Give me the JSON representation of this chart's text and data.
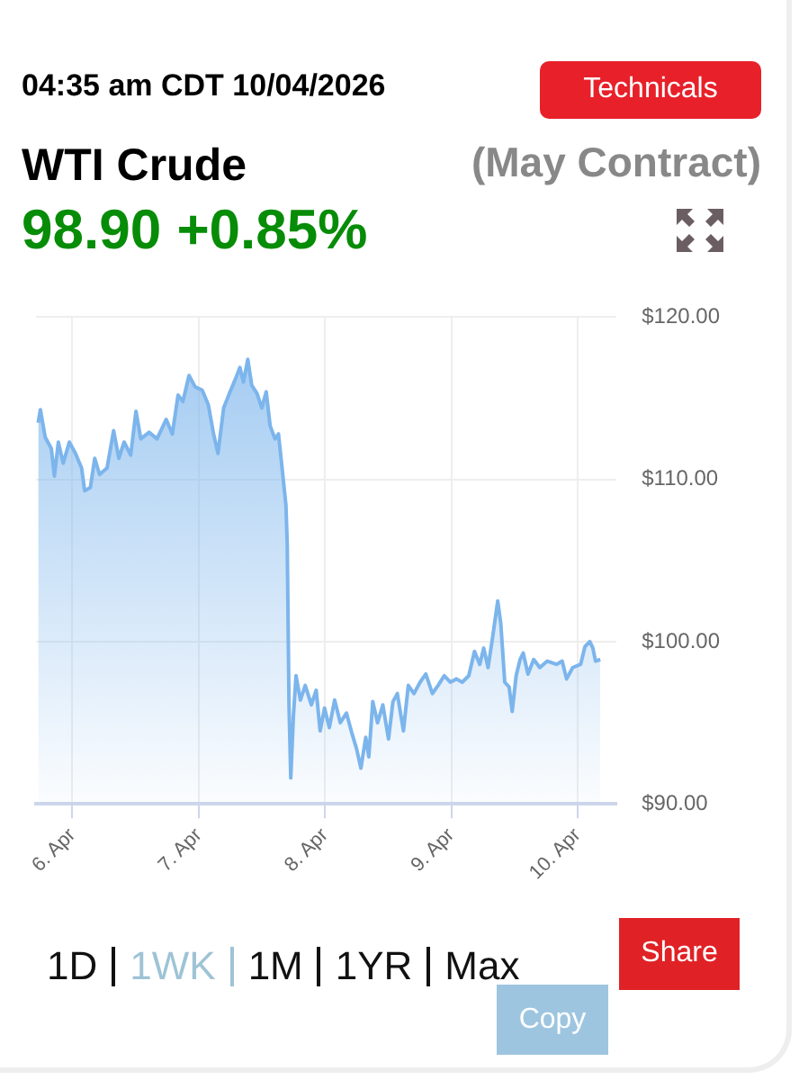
{
  "chart_data": {
    "type": "area",
    "title": "WTI Crude",
    "subtitle": "(May Contract)",
    "annotations": [
      "04:35 am CDT 10/04/2026",
      "98.90 +0.85%",
      "Technicals",
      "1D",
      "1WK",
      "1M",
      "1YR",
      "Max",
      "Share",
      "Copy"
    ],
    "x": [
      "2026-04-05T17:30",
      "2026-04-05T17:55",
      "2026-04-05T18:50",
      "2026-04-05T20:00",
      "2026-04-05T20:35",
      "2026-04-05T21:20",
      "2026-04-05T22:15",
      "2026-04-05T23:25",
      "2026-04-06T00:35",
      "2026-04-06T01:45",
      "2026-04-06T02:20",
      "2026-04-06T03:25",
      "2026-04-06T04:15",
      "2026-04-06T05:10",
      "2026-04-06T06:35",
      "2026-04-06T07:50",
      "2026-04-06T08:50",
      "2026-04-06T09:50",
      "2026-04-06T11:05",
      "2026-04-06T12:05",
      "2026-04-06T13:00",
      "2026-04-06T14:35",
      "2026-04-06T16:05",
      "2026-04-06T17:50",
      "2026-04-06T19:00",
      "2026-04-06T20:05",
      "2026-04-06T21:00",
      "2026-04-06T22:10",
      "2026-04-06T23:20",
      "2026-04-07T00:40",
      "2026-04-07T01:50",
      "2026-04-07T02:50",
      "2026-04-07T03:40",
      "2026-04-07T04:45",
      "2026-04-07T05:50",
      "2026-04-07T07:00",
      "2026-04-07T07:50",
      "2026-04-07T08:30",
      "2026-04-07T09:20",
      "2026-04-07T10:05",
      "2026-04-07T11:05",
      "2026-04-07T12:00",
      "2026-04-07T12:50",
      "2026-04-07T13:35",
      "2026-04-07T14:30",
      "2026-04-07T15:10",
      "2026-04-07T15:55",
      "2026-04-07T16:35",
      "2026-04-07T16:50",
      "2026-04-07T17:10",
      "2026-04-07T17:30",
      "2026-04-07T18:00",
      "2026-04-07T18:30",
      "2026-04-07T19:20",
      "2026-04-07T20:15",
      "2026-04-07T21:25",
      "2026-04-07T22:20",
      "2026-04-07T23:05",
      "2026-04-07T23:55",
      "2026-04-08T00:50",
      "2026-04-08T01:50",
      "2026-04-08T02:55",
      "2026-04-08T04:05",
      "2026-04-08T05:10",
      "2026-04-08T06:00",
      "2026-04-08T06:50",
      "2026-04-08T07:45",
      "2026-04-08T08:20",
      "2026-04-08T09:05",
      "2026-04-08T10:00",
      "2026-04-08T11:00",
      "2026-04-08T12:05",
      "2026-04-08T12:55",
      "2026-04-08T13:45",
      "2026-04-08T14:55",
      "2026-04-08T15:50",
      "2026-04-08T16:55",
      "2026-04-08T18:05",
      "2026-04-08T19:10",
      "2026-04-08T20:25",
      "2026-04-08T21:30",
      "2026-04-08T22:40",
      "2026-04-08T23:50",
      "2026-04-09T01:00",
      "2026-04-09T02:05",
      "2026-04-09T03:20",
      "2026-04-09T04:25",
      "2026-04-09T05:25",
      "2026-04-09T06:10",
      "2026-04-09T07:00",
      "2026-04-09T07:55",
      "2026-04-09T08:50",
      "2026-04-09T09:25",
      "2026-04-09T10:10",
      "2026-04-09T11:00",
      "2026-04-09T11:35",
      "2026-04-09T12:20",
      "2026-04-09T13:05",
      "2026-04-09T13:40",
      "2026-04-09T14:35",
      "2026-04-09T15:40",
      "2026-04-09T16:50",
      "2026-04-09T18:15",
      "2026-04-09T20:00",
      "2026-04-09T21:05",
      "2026-04-09T21:55",
      "2026-04-09T23:05",
      "2026-04-10T00:35",
      "2026-04-10T01:25",
      "2026-04-10T02:20",
      "2026-04-10T02:55",
      "2026-04-10T03:25",
      "2026-04-10T04:20"
    ],
    "series": [
      {
        "color": "#7cb5ec",
        "values": [
          113.5,
          114.3,
          112.6,
          111.9,
          110.2,
          112.3,
          111.0,
          112.3,
          111.6,
          110.7,
          109.3,
          109.5,
          111.3,
          110.3,
          110.7,
          113.0,
          111.3,
          112.3,
          111.5,
          114.2,
          112.5,
          112.9,
          112.5,
          113.7,
          112.8,
          115.2,
          114.8,
          116.4,
          115.7,
          115.5,
          114.6,
          112.8,
          111.6,
          114.4,
          115.3,
          116.2,
          116.9,
          116.0,
          117.4,
          115.8,
          115.3,
          114.4,
          115.4,
          113.3,
          112.5,
          112.8,
          110.5,
          108.4,
          106.0,
          96.1,
          91.6,
          95.4,
          97.9,
          96.4,
          97.3,
          96.1,
          97.0,
          94.5,
          95.9,
          94.7,
          96.4,
          95.0,
          95.6,
          94.3,
          93.4,
          92.2,
          94.1,
          92.9,
          96.3,
          95.0,
          96.1,
          94.0,
          96.3,
          96.8,
          94.5,
          97.3,
          96.8,
          97.5,
          98.0,
          96.8,
          97.3,
          97.9,
          97.5,
          97.7,
          97.5,
          97.9,
          99.4,
          98.6,
          99.6,
          98.4,
          100.4,
          102.5,
          101.1,
          97.5,
          97.2,
          95.7,
          97.9,
          98.9,
          99.3,
          98.0,
          98.9,
          98.4,
          98.8,
          98.6,
          98.8,
          97.7,
          98.4,
          98.6,
          99.7,
          100.0,
          99.6,
          98.8,
          98.9
        ]
      }
    ],
    "xlim": [
      "2026-04-05T17:05",
      "2026-04-10T07:25"
    ],
    "xticks": [
      {
        "value": "2026-04-06",
        "label": "6. Apr"
      },
      {
        "value": "2026-04-07",
        "label": "7. Apr"
      },
      {
        "value": "2026-04-08",
        "label": "8. Apr"
      },
      {
        "value": "2026-04-09",
        "label": "9. Apr"
      },
      {
        "value": "2026-04-10",
        "label": "10. Apr"
      }
    ],
    "ylim": [
      90,
      120
    ],
    "yticks": [
      {
        "value": 90,
        "label": "$90.00"
      },
      {
        "value": 100,
        "label": "$100.00"
      },
      {
        "value": 110,
        "label": "$110.00"
      },
      {
        "value": 120,
        "label": "$120.00"
      }
    ],
    "grid": true,
    "legend": false,
    "marker": "none",
    "line_style": "solid"
  }
}
